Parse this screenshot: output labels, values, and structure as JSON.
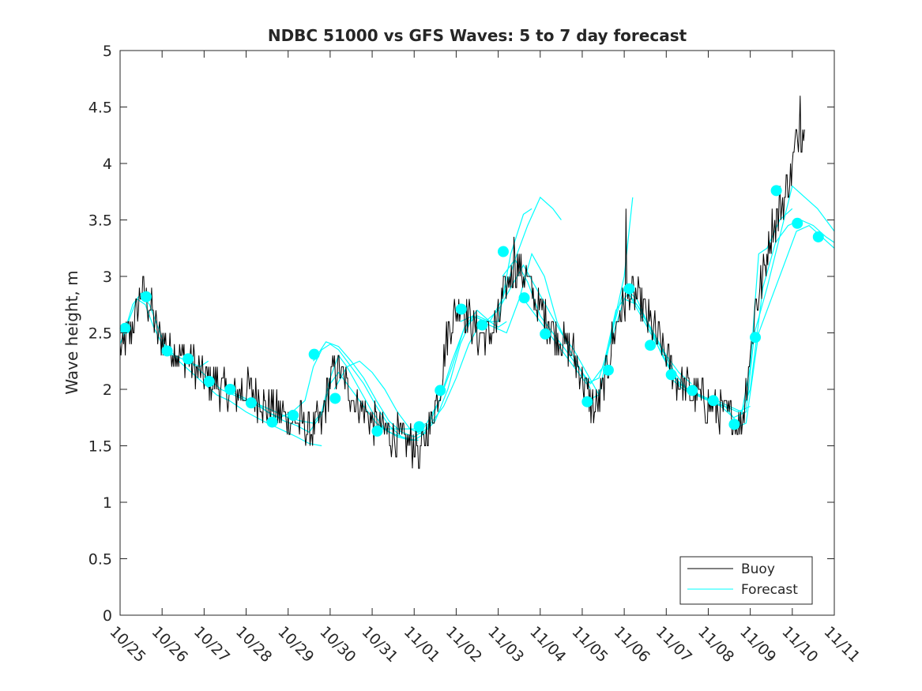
{
  "chart_data": {
    "type": "line",
    "title": "NDBC 51000 vs GFS Waves: 5 to 7 day forecast",
    "xlabel": "",
    "ylabel": "Wave height, m",
    "xlim": [
      0,
      17
    ],
    "ylim": [
      0,
      5
    ],
    "grid": false,
    "legend_position": "bottom-right",
    "x_tick_labels": [
      "10/25",
      "10/26",
      "10/27",
      "10/28",
      "10/29",
      "10/30",
      "10/31",
      "11/01",
      "11/02",
      "11/03",
      "11/04",
      "11/05",
      "11/06",
      "11/07",
      "11/08",
      "11/09",
      "11/10",
      "11/11"
    ],
    "y_ticks": [
      0,
      0.5,
      1,
      1.5,
      2,
      2.5,
      3,
      3.5,
      4,
      4.5,
      5
    ],
    "y_tick_labels": [
      "0",
      "0.5",
      "1",
      "1.5",
      "2",
      "2.5",
      "3",
      "3.5",
      "4",
      "4.5",
      "5"
    ],
    "colors": {
      "buoy": "#000000",
      "forecast": "#00ffff",
      "axis": "#262626"
    },
    "series": [
      {
        "name": "Buoy",
        "x_units": "days since 10/25 00Z",
        "anchors": [
          [
            0.0,
            2.3
          ],
          [
            0.1,
            2.4
          ],
          [
            0.25,
            2.5
          ],
          [
            0.4,
            2.7
          ],
          [
            0.5,
            2.85
          ],
          [
            0.6,
            2.8
          ],
          [
            0.75,
            2.7
          ],
          [
            0.9,
            2.5
          ],
          [
            1.0,
            2.45
          ],
          [
            1.2,
            2.35
          ],
          [
            1.5,
            2.3
          ],
          [
            1.7,
            2.25
          ],
          [
            2.0,
            2.1
          ],
          [
            2.3,
            2.05
          ],
          [
            2.6,
            1.95
          ],
          [
            3.0,
            2.0
          ],
          [
            3.2,
            1.95
          ],
          [
            3.5,
            1.85
          ],
          [
            3.7,
            1.8
          ],
          [
            4.0,
            1.75
          ],
          [
            4.3,
            1.7
          ],
          [
            4.5,
            1.65
          ],
          [
            4.8,
            1.7
          ],
          [
            4.9,
            1.9
          ],
          [
            5.0,
            2.1
          ],
          [
            5.1,
            2.2
          ],
          [
            5.3,
            2.1
          ],
          [
            5.5,
            1.95
          ],
          [
            5.8,
            1.8
          ],
          [
            6.0,
            1.7
          ],
          [
            6.3,
            1.65
          ],
          [
            6.5,
            1.6
          ],
          [
            6.8,
            1.55
          ],
          [
            7.0,
            1.5
          ],
          [
            7.2,
            1.5
          ],
          [
            7.4,
            1.7
          ],
          [
            7.6,
            2.0
          ],
          [
            7.8,
            2.5
          ],
          [
            8.0,
            2.7
          ],
          [
            8.1,
            2.75
          ],
          [
            8.3,
            2.65
          ],
          [
            8.5,
            2.5
          ],
          [
            8.7,
            2.45
          ],
          [
            9.0,
            2.6
          ],
          [
            9.15,
            2.85
          ],
          [
            9.3,
            3.0
          ],
          [
            9.5,
            3.1
          ],
          [
            9.7,
            2.95
          ],
          [
            10.0,
            2.7
          ],
          [
            10.2,
            2.6
          ],
          [
            10.5,
            2.45
          ],
          [
            10.8,
            2.3
          ],
          [
            11.0,
            2.1
          ],
          [
            11.2,
            1.9
          ],
          [
            11.3,
            1.8
          ],
          [
            11.5,
            2.0
          ],
          [
            11.7,
            2.4
          ],
          [
            11.9,
            2.7
          ],
          [
            12.0,
            2.75
          ],
          [
            12.1,
            2.85
          ],
          [
            12.3,
            2.8
          ],
          [
            12.6,
            2.6
          ],
          [
            13.0,
            2.3
          ],
          [
            13.2,
            2.1
          ],
          [
            13.5,
            2.0
          ],
          [
            13.8,
            1.95
          ],
          [
            14.0,
            1.85
          ],
          [
            14.3,
            1.8
          ],
          [
            14.6,
            1.75
          ],
          [
            14.8,
            1.7
          ],
          [
            15.0,
            2.3
          ],
          [
            15.1,
            2.7
          ],
          [
            15.3,
            3.0
          ],
          [
            15.5,
            3.4
          ],
          [
            15.7,
            3.6
          ],
          [
            15.9,
            3.8
          ],
          [
            16.0,
            4.0
          ],
          [
            16.1,
            4.2
          ],
          [
            16.2,
            4.3
          ],
          [
            16.3,
            4.25
          ]
        ],
        "spikes": [
          [
            12.05,
            3.6
          ],
          [
            16.18,
            4.6
          ],
          [
            9.38,
            3.35
          ],
          [
            7.12,
            1.3
          ]
        ],
        "end_x": 16.3
      },
      {
        "name": "Forecast",
        "runs": [
          {
            "x": [
              0.0,
              0.2,
              0.4,
              0.6,
              0.8,
              1.0,
              1.3,
              1.6,
              1.9,
              2.1
            ],
            "y": [
              2.4,
              2.6,
              2.8,
              2.75,
              2.55,
              2.4,
              2.3,
              2.25,
              2.2,
              2.25
            ]
          },
          {
            "x": [
              0.1,
              0.3,
              0.5,
              0.7,
              0.9,
              1.1,
              1.4,
              1.7,
              2.0,
              2.3,
              2.6,
              3.0,
              3.4,
              3.8,
              4.2,
              4.5,
              4.8
            ],
            "y": [
              2.5,
              2.75,
              2.85,
              2.75,
              2.55,
              2.35,
              2.25,
              2.15,
              2.05,
              1.95,
              1.9,
              1.8,
              1.72,
              1.65,
              1.58,
              1.52,
              1.5
            ]
          },
          {
            "x": [
              1.5,
              1.8,
              2.1,
              2.4,
              2.7,
              3.0,
              3.3,
              3.6,
              3.9,
              4.2,
              4.5,
              4.8,
              5.0,
              5.2,
              5.5,
              5.8,
              6.1,
              6.4,
              6.7,
              7.0
            ],
            "y": [
              2.3,
              2.2,
              2.1,
              2.0,
              1.95,
              1.9,
              1.85,
              1.78,
              1.72,
              1.68,
              1.62,
              1.78,
              2.05,
              2.15,
              2.0,
              1.85,
              1.7,
              1.62,
              1.58,
              1.55
            ]
          },
          {
            "x": [
              2.5,
              2.8,
              3.1,
              3.4,
              3.7,
              4.0,
              4.3,
              4.6,
              4.8,
              5.0,
              5.2,
              5.4,
              5.7,
              6.0,
              6.3,
              6.6,
              6.9,
              7.1
            ],
            "y": [
              2.0,
              1.95,
              1.9,
              1.85,
              1.8,
              1.75,
              1.72,
              1.7,
              1.8,
              2.1,
              2.3,
              2.2,
              2.0,
              1.8,
              1.65,
              1.58,
              1.55,
              1.55
            ]
          },
          {
            "x": [
              3.2,
              3.5,
              3.8,
              4.1,
              4.4,
              4.6,
              4.8,
              5.0,
              5.2,
              5.5,
              5.8,
              6.1,
              6.4,
              6.7,
              7.0,
              7.3
            ],
            "y": [
              1.9,
              1.8,
              1.75,
              1.8,
              1.9,
              2.2,
              2.35,
              2.4,
              2.35,
              2.2,
              2.05,
              1.85,
              1.68,
              1.58,
              1.55,
              1.62
            ]
          },
          {
            "x": [
              4.6,
              4.9,
              5.2,
              5.5,
              5.8,
              6.1,
              6.4,
              6.7,
              7.0,
              7.3,
              7.6,
              7.9,
              8.2,
              8.5,
              8.8,
              9.0,
              9.2
            ],
            "y": [
              2.25,
              2.42,
              2.38,
              2.25,
              2.1,
              1.9,
              1.72,
              1.62,
              1.58,
              1.65,
              1.9,
              2.25,
              2.55,
              2.65,
              2.6,
              2.55,
              2.6
            ]
          },
          {
            "x": [
              5.1,
              5.4,
              5.7,
              6.0,
              6.3,
              6.6,
              6.9,
              7.2,
              7.5,
              7.8,
              8.1,
              8.4,
              8.7,
              9.0,
              9.3,
              9.6,
              9.8
            ],
            "y": [
              2.0,
              2.2,
              2.25,
              2.15,
              2.0,
              1.8,
              1.65,
              1.6,
              1.72,
              2.0,
              2.4,
              2.65,
              2.6,
              2.6,
              3.2,
              3.55,
              3.6
            ]
          },
          {
            "x": [
              6.1,
              6.4,
              6.7,
              7.0,
              7.3,
              7.6,
              7.9,
              8.2,
              8.5,
              8.8,
              9.1,
              9.4,
              9.7,
              10.0,
              10.3,
              10.5
            ],
            "y": [
              1.65,
              1.65,
              1.65,
              1.65,
              1.7,
              1.9,
              2.2,
              2.55,
              2.7,
              2.6,
              2.8,
              3.15,
              3.45,
              3.7,
              3.6,
              3.5
            ]
          },
          {
            "x": [
              7.1,
              7.4,
              7.7,
              8.0,
              8.3,
              8.6,
              8.9,
              9.2,
              9.5,
              9.8,
              10.1,
              10.4,
              10.7,
              11.0,
              11.2
            ],
            "y": [
              1.65,
              1.7,
              1.85,
              2.1,
              2.4,
              2.6,
              2.55,
              2.5,
              2.8,
              3.2,
              3.0,
              2.6,
              2.35,
              2.15,
              2.0
            ]
          },
          {
            "x": [
              8.1,
              8.4,
              8.7,
              9.0,
              9.3,
              9.6,
              9.9,
              10.2,
              10.5,
              10.8,
              11.1,
              11.4,
              11.7,
              12.0,
              12.2
            ],
            "y": [
              2.6,
              2.65,
              2.6,
              2.7,
              2.9,
              3.1,
              2.9,
              2.7,
              2.5,
              2.35,
              2.15,
              1.95,
              2.5,
              3.0,
              3.7
            ]
          },
          {
            "x": [
              9.1,
              9.4,
              9.7,
              10.0,
              10.3,
              10.6,
              10.9,
              11.2,
              11.5,
              11.8,
              12.1,
              12.4,
              12.7,
              13.0,
              13.3,
              13.6
            ],
            "y": [
              3.0,
              3.15,
              2.95,
              2.65,
              2.5,
              2.35,
              2.2,
              2.05,
              2.2,
              2.7,
              2.85,
              2.7,
              2.5,
              2.3,
              2.15,
              2.05
            ]
          },
          {
            "x": [
              9.6,
              9.9,
              10.2,
              10.5,
              10.8,
              11.1,
              11.4,
              11.7,
              12.0,
              12.3,
              12.6,
              12.9,
              13.2,
              13.5,
              13.8,
              14.1
            ],
            "y": [
              2.8,
              2.65,
              2.5,
              2.35,
              2.2,
              2.05,
              2.1,
              2.45,
              2.8,
              2.75,
              2.55,
              2.35,
              2.15,
              2.0,
              1.95,
              1.9
            ]
          },
          {
            "x": [
              11.1,
              11.4,
              11.7,
              12.0,
              12.3,
              12.6,
              12.9,
              13.2,
              13.5,
              13.8,
              14.1,
              14.4,
              14.7,
              15.0
            ],
            "y": [
              1.9,
              1.95,
              2.5,
              2.9,
              2.8,
              2.55,
              2.3,
              2.1,
              2.0,
              1.95,
              1.9,
              1.85,
              1.8,
              1.85
            ]
          },
          {
            "x": [
              12.1,
              12.4,
              12.7,
              13.0,
              13.3,
              13.6,
              13.9,
              14.2,
              14.5,
              14.8,
              15.0,
              15.2,
              15.4,
              15.7,
              16.0
            ],
            "y": [
              2.85,
              2.65,
              2.45,
              2.25,
              2.05,
              1.98,
              1.92,
              1.9,
              1.85,
              1.8,
              2.2,
              3.2,
              3.25,
              3.5,
              3.6
            ]
          },
          {
            "x": [
              13.1,
              13.4,
              13.7,
              14.0,
              14.3,
              14.6,
              14.9,
              15.1,
              15.4,
              15.7,
              16.0,
              16.3,
              16.6,
              16.9,
              17.0
            ],
            "y": [
              2.1,
              2.0,
              1.95,
              1.9,
              1.85,
              1.75,
              1.8,
              2.5,
              2.9,
              3.35,
              3.8,
              3.7,
              3.6,
              3.45,
              3.4
            ]
          },
          {
            "x": [
              14.1,
              14.4,
              14.7,
              15.0,
              15.3,
              15.6,
              15.9,
              16.2,
              16.5,
              16.8,
              17.0
            ],
            "y": [
              1.88,
              1.85,
              1.7,
              2.0,
              2.9,
              3.3,
              3.45,
              3.5,
              3.45,
              3.35,
              3.3
            ]
          },
          {
            "x": [
              14.6,
              14.9,
              15.2,
              15.5,
              15.8,
              16.1,
              16.4,
              16.7,
              17.0
            ],
            "y": [
              1.65,
              1.7,
              2.5,
              2.8,
              3.1,
              3.4,
              3.45,
              3.35,
              3.25
            ]
          }
        ],
        "markers": {
          "x": [
            0.12,
            0.62,
            1.12,
            1.62,
            2.12,
            2.62,
            3.12,
            3.62,
            4.12,
            4.62,
            5.12,
            6.12,
            7.12,
            7.62,
            8.12,
            8.62,
            9.12,
            9.62,
            10.12,
            11.12,
            11.62,
            12.12,
            12.62,
            13.12,
            13.62,
            14.12,
            14.62,
            15.12,
            15.62,
            16.12,
            16.62
          ],
          "y": [
            2.54,
            2.82,
            2.34,
            2.27,
            2.07,
            2.0,
            1.88,
            1.71,
            1.77,
            2.31,
            1.92,
            1.63,
            1.67,
            1.99,
            2.71,
            2.57,
            3.22,
            2.81,
            2.49,
            1.89,
            2.17,
            2.89,
            2.39,
            2.13,
            1.99,
            1.9,
            1.69,
            2.46,
            3.76,
            3.47,
            3.35
          ]
        }
      }
    ],
    "legend": {
      "entries": [
        "Buoy",
        "Forecast"
      ]
    }
  }
}
